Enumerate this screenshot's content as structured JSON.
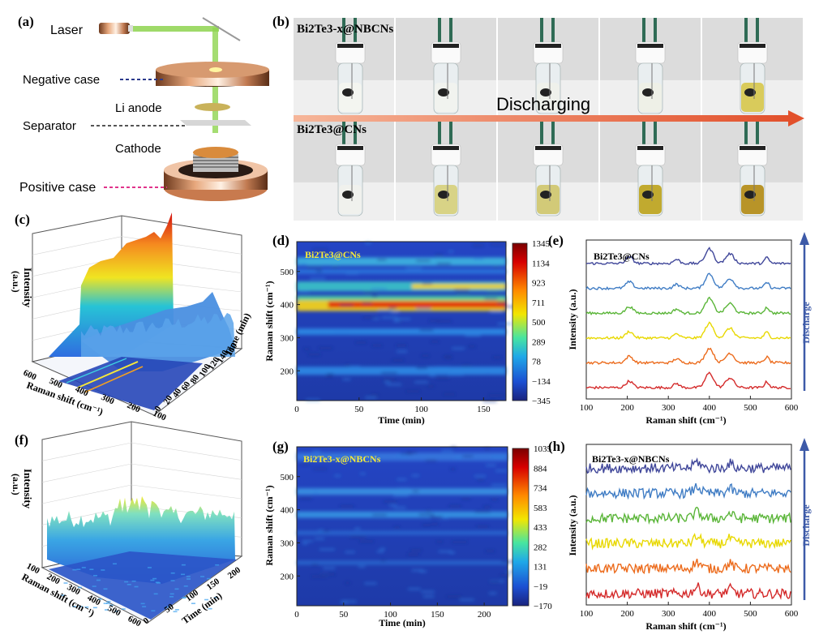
{
  "panels": {
    "a": {
      "label": "(a)",
      "parts": [
        "Laser",
        "Negative case",
        "Li anode",
        "Separator",
        "Cathode",
        "Positive case"
      ]
    },
    "b": {
      "label": "(b)",
      "row1": "Bi2Te3-x@NBCNs",
      "row2": "Bi2Te3@CNs",
      "arrow_text": "Discharging"
    },
    "c": {
      "label": "(c)",
      "zlabel": "Intensity",
      "zunit": "(a.u.)",
      "xlabel": "Raman shift (cm⁻¹)",
      "ylabel": "Time (min)",
      "xticks": [
        "600",
        "500",
        "400",
        "300",
        "200",
        "100"
      ],
      "yticks": [
        "0",
        "20",
        "40",
        "60",
        "80",
        "100",
        "120",
        "140",
        "160"
      ]
    },
    "d": {
      "label": "(d)",
      "sample": "Bi2Te3@CNs",
      "xlabel": "Time (min)",
      "ylabel": "Raman shift (cm⁻¹)",
      "xticks": [
        "0",
        "50",
        "100",
        "150"
      ],
      "yticks": [
        "200",
        "300",
        "400",
        "500"
      ],
      "colorbar": [
        "1345",
        "1134",
        "923",
        "711",
        "500",
        "289",
        "78",
        "−134",
        "−345"
      ]
    },
    "e": {
      "label": "(e)",
      "sample": "Bi2Te3@CNs",
      "xlabel": "Raman shift (cm⁻¹)",
      "ylabel": "Intensity (a.u.)",
      "side_label": "Discharge",
      "xticks": [
        "100",
        "200",
        "300",
        "400",
        "500",
        "600"
      ]
    },
    "f": {
      "label": "(f)",
      "zlabel": "Intensity",
      "zunit": "(a.u.)",
      "xlabel": "Raman shift (cm⁻¹)",
      "ylabel": "Time (min)",
      "xticks": [
        "100",
        "200",
        "300",
        "400",
        "500",
        "600"
      ],
      "yticks": [
        "0",
        "50",
        "100",
        "150",
        "200"
      ]
    },
    "g": {
      "label": "(g)",
      "sample": "Bi2Te3-x@NBCNs",
      "xlabel": "Time (min)",
      "ylabel": "Raman shift (cm⁻¹)",
      "xticks": [
        "0",
        "50",
        "100",
        "150",
        "200"
      ],
      "yticks": [
        "200",
        "300",
        "400",
        "500"
      ],
      "colorbar": [
        "1035",
        "884",
        "734",
        "583",
        "433",
        "282",
        "131",
        "−19",
        "−170"
      ]
    },
    "h": {
      "label": "(h)",
      "sample": "Bi2Te3-x@NBCNs",
      "xlabel": "Raman shift (cm⁻¹)",
      "ylabel": "Intensity (a.u.)",
      "side_label": "Discharge",
      "xticks": [
        "100",
        "200",
        "300",
        "400",
        "500",
        "600"
      ]
    }
  },
  "chart_data": [
    {
      "type": "heatmap",
      "panel": "d",
      "title": "Bi2Te3@CNs",
      "xlabel": "Time (min)",
      "ylabel": "Raman shift (cm-1)",
      "xlim": [
        0,
        168
      ],
      "ylim": [
        110,
        590
      ],
      "bands_cm1": [
        200,
        320,
        400,
        455,
        530
      ],
      "zlim": [
        -345,
        1345
      ]
    },
    {
      "type": "line",
      "panel": "e",
      "title": "Bi2Te3@CNs",
      "xlabel": "Raman shift (cm-1)",
      "ylabel": "Intensity (a.u.)",
      "xlim": [
        100,
        600
      ],
      "peaks_cm1": [
        205,
        320,
        400,
        450,
        540
      ],
      "series_count": 6,
      "series_colors": [
        "#d42a2a",
        "#ec6b1c",
        "#e8d800",
        "#5ab538",
        "#3f7cc4",
        "#40479a"
      ]
    },
    {
      "type": "heatmap",
      "panel": "g",
      "title": "Bi2Te3-x@NBCNs",
      "xlabel": "Time (min)",
      "ylabel": "Raman shift (cm-1)",
      "xlim": [
        0,
        225
      ],
      "ylim": [
        110,
        590
      ],
      "zlim": [
        -170,
        1035
      ]
    },
    {
      "type": "line",
      "panel": "h",
      "title": "Bi2Te3-x@NBCNs",
      "xlabel": "Raman shift (cm-1)",
      "ylabel": "Intensity (a.u.)",
      "xlim": [
        100,
        600
      ],
      "peaks_cm1": [
        370,
        450
      ],
      "series_count": 6,
      "series_colors": [
        "#d42a2a",
        "#ec6b1c",
        "#e8d800",
        "#5ab538",
        "#3f7cc4",
        "#40479a"
      ]
    }
  ]
}
